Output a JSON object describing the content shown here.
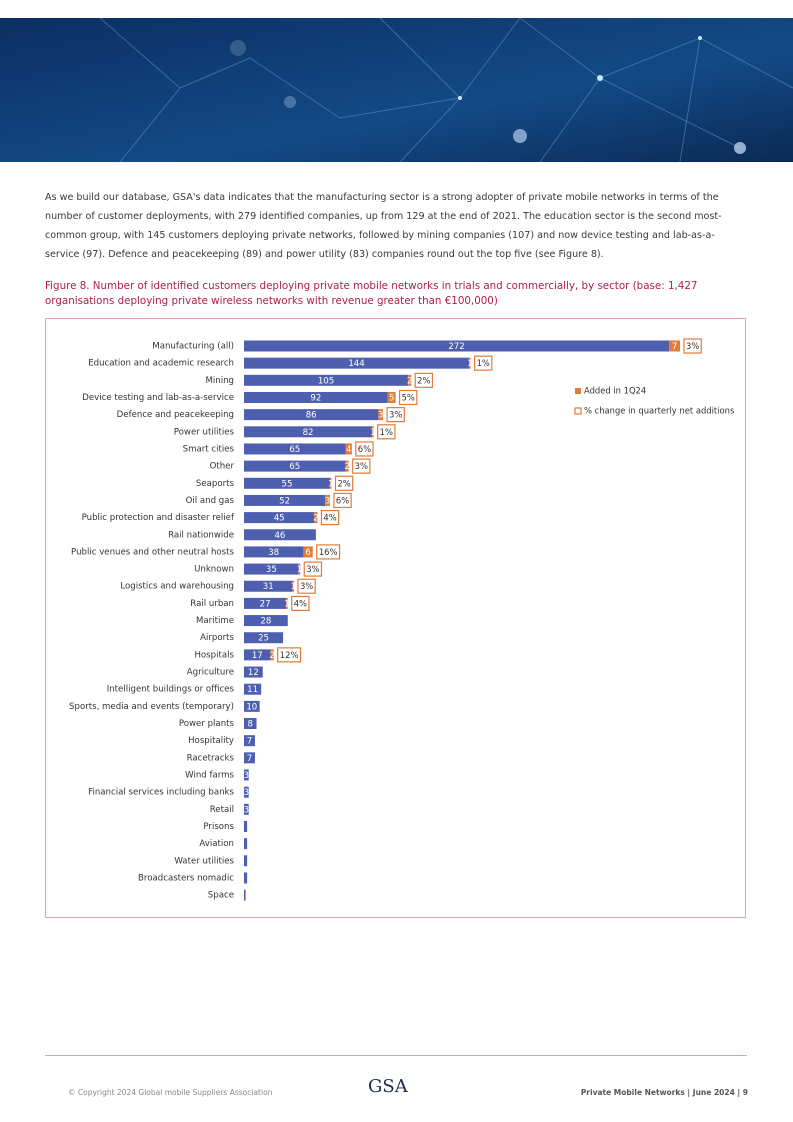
{
  "body_text": "As we build our database, GSA's data indicates that the manufacturing sector is a strong adopter of private mobile networks in terms of the number of customer deployments, with 279 identified companies, up from 129 at the end of 2021. The education sector is the second most-common group, with 145 customers deploying private networks, followed by mining companies (107) and now device testing and lab-as-a-service (97). Defence and peacekeeping (89) and power utility (83) companies round out the top five (see Figure 8).",
  "chart_data": {
    "type": "bar",
    "orientation": "horizontal",
    "stacked": true,
    "title": "Figure 8. Number of identified customers deploying private mobile networks in trials and commercially, by sector (base: 1,427 organisations deploying private wireless networks with revenue greater than €100,000)",
    "categories": [
      "Manufacturing (all)",
      "Education and academic research",
      "Mining",
      "Device testing and lab-as-a-service",
      "Defence and peacekeeping",
      "Power utilities",
      "Smart cities",
      "Other",
      "Seaports",
      "Oil and gas",
      "Public protection and disaster relief",
      "Rail nationwide",
      "Public venues and other neutral hosts",
      "Unknown",
      "Logistics and warehousing",
      "Rail urban",
      "Maritime",
      "Airports",
      "Hospitals",
      "Agriculture",
      "Intelligent buildings or offices",
      "Sports, media and events (temporary)",
      "Power plants",
      "Hospitality",
      "Racetracks",
      "Wind farms",
      "Financial services including banks",
      "Retail",
      "Prisons",
      "Aviation",
      "Water utilities",
      "Broadcasters nomadic",
      "Space"
    ],
    "xlim": [
      0,
      280
    ],
    "legend": "right",
    "series": [
      {
        "color": "#4f5fb0",
        "values": [
          272,
          144,
          105,
          92,
          86,
          82,
          65,
          65,
          55,
          52,
          45,
          46,
          38,
          35,
          31,
          27,
          28,
          25,
          17,
          12,
          11,
          10,
          8,
          7,
          7,
          3,
          3,
          3,
          2,
          2,
          2,
          2,
          1
        ],
        "value_labels": [
          "272",
          "144",
          "105",
          "92",
          "86",
          "82",
          "65",
          "65",
          "55",
          "52",
          "45",
          "46",
          "38",
          "35",
          "31",
          "27",
          "28",
          "25",
          "17",
          "12",
          "11",
          "10",
          "8",
          "7",
          "7",
          "3",
          "3",
          "3",
          null,
          null,
          null,
          null,
          null
        ]
      },
      {
        "name": "Added in 1Q24",
        "color": "#e07b39",
        "values": [
          7,
          1,
          2,
          5,
          3,
          1,
          4,
          2,
          1,
          3,
          2,
          null,
          6,
          1,
          1,
          1,
          null,
          null,
          2,
          null,
          null,
          null,
          null,
          null,
          null,
          null,
          null,
          null,
          null,
          null,
          null,
          null,
          null
        ]
      },
      {
        "name": "% change in quarterly net additions",
        "color": "#e07b39",
        "values": [
          3,
          1,
          2,
          5,
          3,
          1,
          6,
          3,
          2,
          6,
          4,
          null,
          16,
          3,
          3,
          4,
          null,
          null,
          12,
          null,
          null,
          null,
          null,
          null,
          null,
          null,
          null,
          null,
          null,
          null,
          null,
          null,
          null
        ],
        "value_labels": [
          "3%",
          "1%",
          "2%",
          "5%",
          "3%",
          "1%",
          "6%",
          "3%",
          "2%",
          "6%",
          "4%",
          null,
          "16%",
          "3%",
          "3%",
          "4%",
          null,
          null,
          "12%",
          null,
          null,
          null,
          null,
          null,
          null,
          null,
          null,
          null,
          null,
          null,
          null,
          null,
          null
        ]
      }
    ]
  },
  "footer": {
    "copyright": "© Copyright 2024 Global mobile Suppliers Association",
    "logo": "GSA",
    "right": "Private Mobile Networks | June 2024 | 9"
  }
}
